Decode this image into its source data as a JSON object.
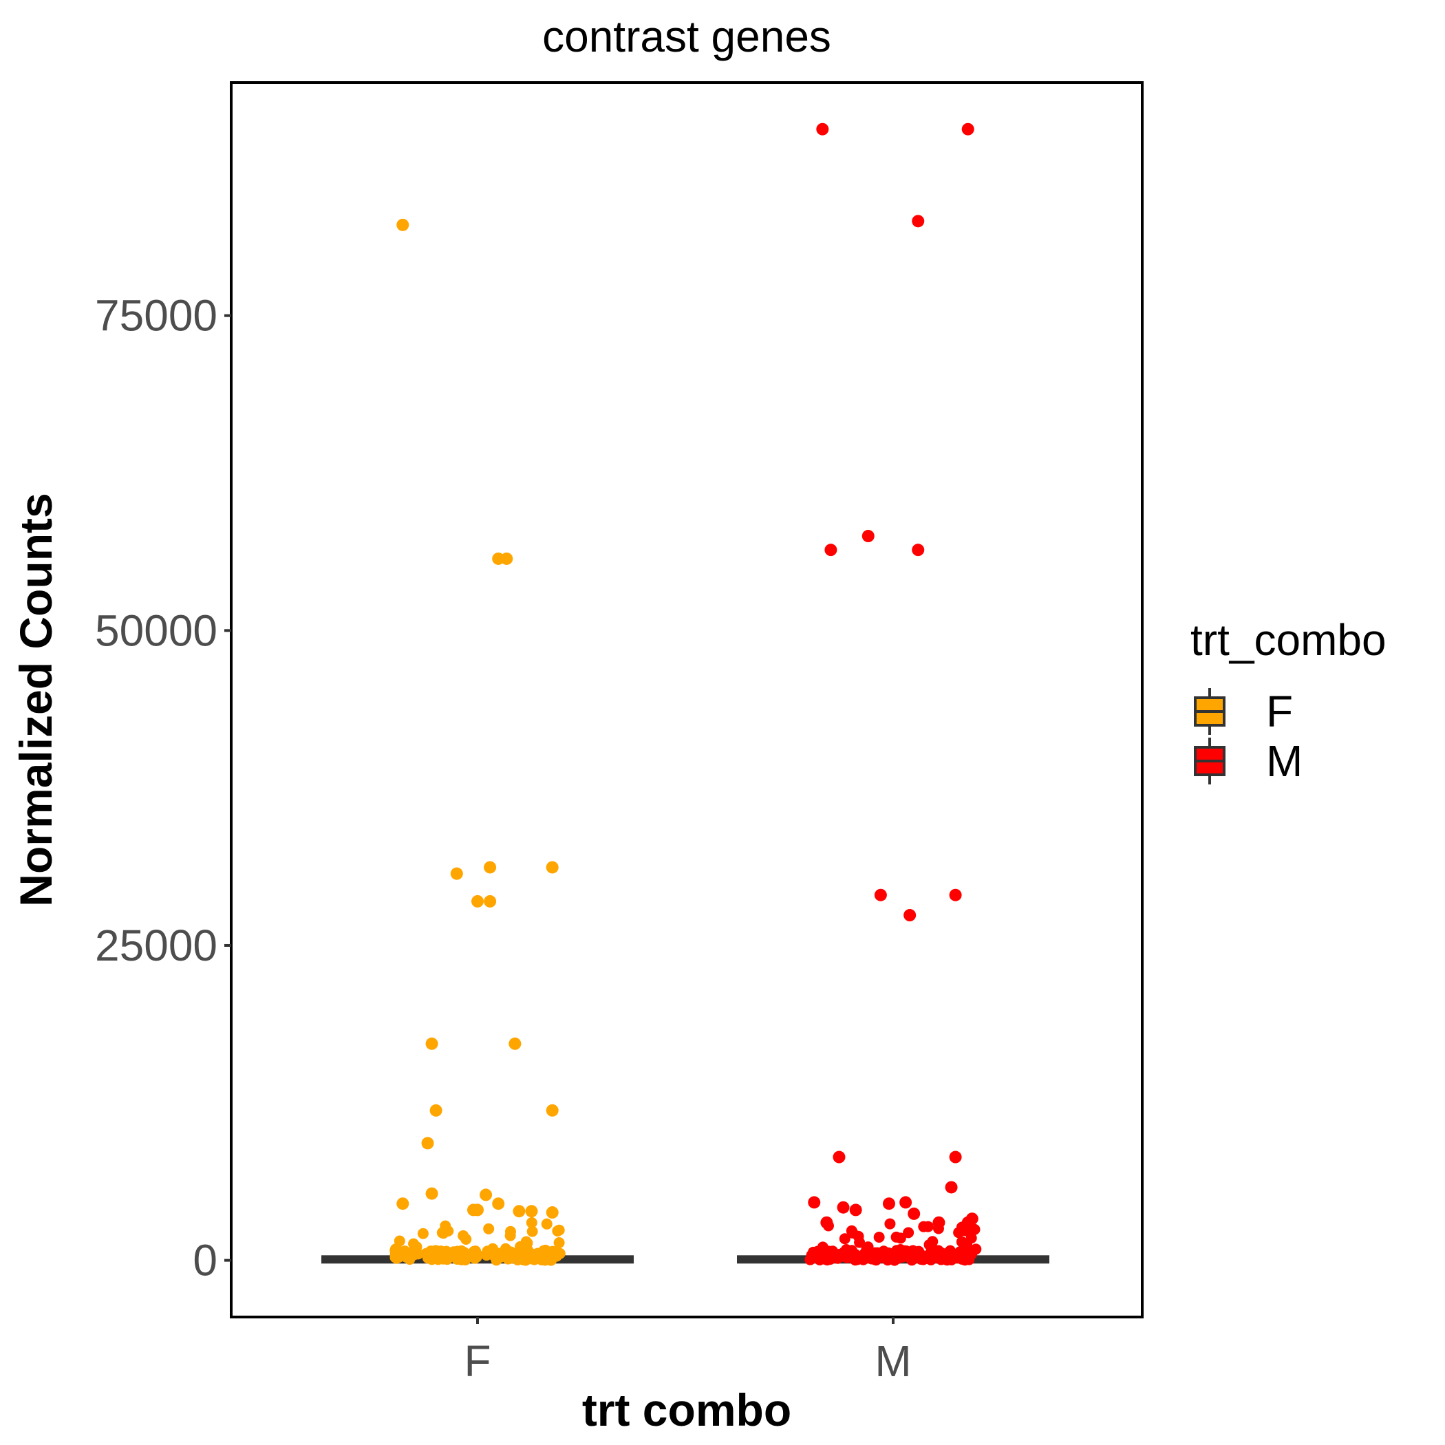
{
  "chart_data": {
    "type": "box+jitter",
    "title": "contrast genes",
    "xlabel": "trt combo",
    "ylabel": "Normalized Counts",
    "ylim": [
      -4500,
      93500
    ],
    "yticks": [
      0,
      25000,
      50000,
      75000
    ],
    "ytick_labels": [
      "0",
      "25000",
      "50000",
      "75000"
    ],
    "categories": [
      "F",
      "M"
    ],
    "legend": {
      "title": "trt_combo",
      "position": "right",
      "entries": [
        {
          "label": "F",
          "color": "#FFA500"
        },
        {
          "label": "M",
          "color": "#FF0000"
        }
      ]
    },
    "box": {
      "median": 150,
      "q1": 0,
      "q3": 400,
      "color": "#333333"
    },
    "series": [
      {
        "name": "F",
        "color": "#FFA500",
        "highlighted_points": [
          {
            "x": -0.18,
            "y": 82200
          },
          {
            "x": 0.05,
            "y": 55700
          },
          {
            "x": 0.07,
            "y": 55700
          },
          {
            "x": -0.05,
            "y": 30700
          },
          {
            "x": 0.03,
            "y": 31200
          },
          {
            "x": 0.18,
            "y": 31200
          },
          {
            "x": 0.0,
            "y": 28500
          },
          {
            "x": 0.03,
            "y": 28500
          },
          {
            "x": -0.11,
            "y": 17200
          },
          {
            "x": 0.09,
            "y": 17200
          },
          {
            "x": -0.1,
            "y": 11900
          },
          {
            "x": 0.18,
            "y": 11900
          },
          {
            "x": -0.12,
            "y": 9300
          },
          {
            "x": -0.11,
            "y": 5300
          },
          {
            "x": 0.02,
            "y": 5200
          },
          {
            "x": -0.18,
            "y": 4500
          },
          {
            "x": 0.05,
            "y": 4500
          },
          {
            "x": 0.0,
            "y": 4000
          },
          {
            "x": -0.01,
            "y": 4000
          },
          {
            "x": 0.1,
            "y": 3900
          },
          {
            "x": 0.13,
            "y": 3900
          },
          {
            "x": 0.18,
            "y": 3800
          }
        ]
      },
      {
        "name": "M",
        "color": "#FF0000",
        "highlighted_points": [
          {
            "x": -0.17,
            "y": 89800
          },
          {
            "x": 0.18,
            "y": 89800
          },
          {
            "x": 0.06,
            "y": 82500
          },
          {
            "x": -0.15,
            "y": 56400
          },
          {
            "x": -0.06,
            "y": 57500
          },
          {
            "x": 0.06,
            "y": 56400
          },
          {
            "x": -0.03,
            "y": 29000
          },
          {
            "x": 0.15,
            "y": 29000
          },
          {
            "x": 0.04,
            "y": 27400
          },
          {
            "x": -0.13,
            "y": 8200
          },
          {
            "x": 0.15,
            "y": 8200
          },
          {
            "x": 0.14,
            "y": 5800
          },
          {
            "x": -0.19,
            "y": 4600
          },
          {
            "x": -0.12,
            "y": 4200
          },
          {
            "x": -0.09,
            "y": 4000
          },
          {
            "x": -0.01,
            "y": 4500
          },
          {
            "x": 0.03,
            "y": 4600
          },
          {
            "x": 0.05,
            "y": 3700
          },
          {
            "x": 0.19,
            "y": 3300
          },
          {
            "x": 0.18,
            "y": 3000
          },
          {
            "x": -0.16,
            "y": 3000
          },
          {
            "x": 0.11,
            "y": 3000
          }
        ],
        "cluster_range": [
          0,
          3000
        ]
      }
    ]
  }
}
